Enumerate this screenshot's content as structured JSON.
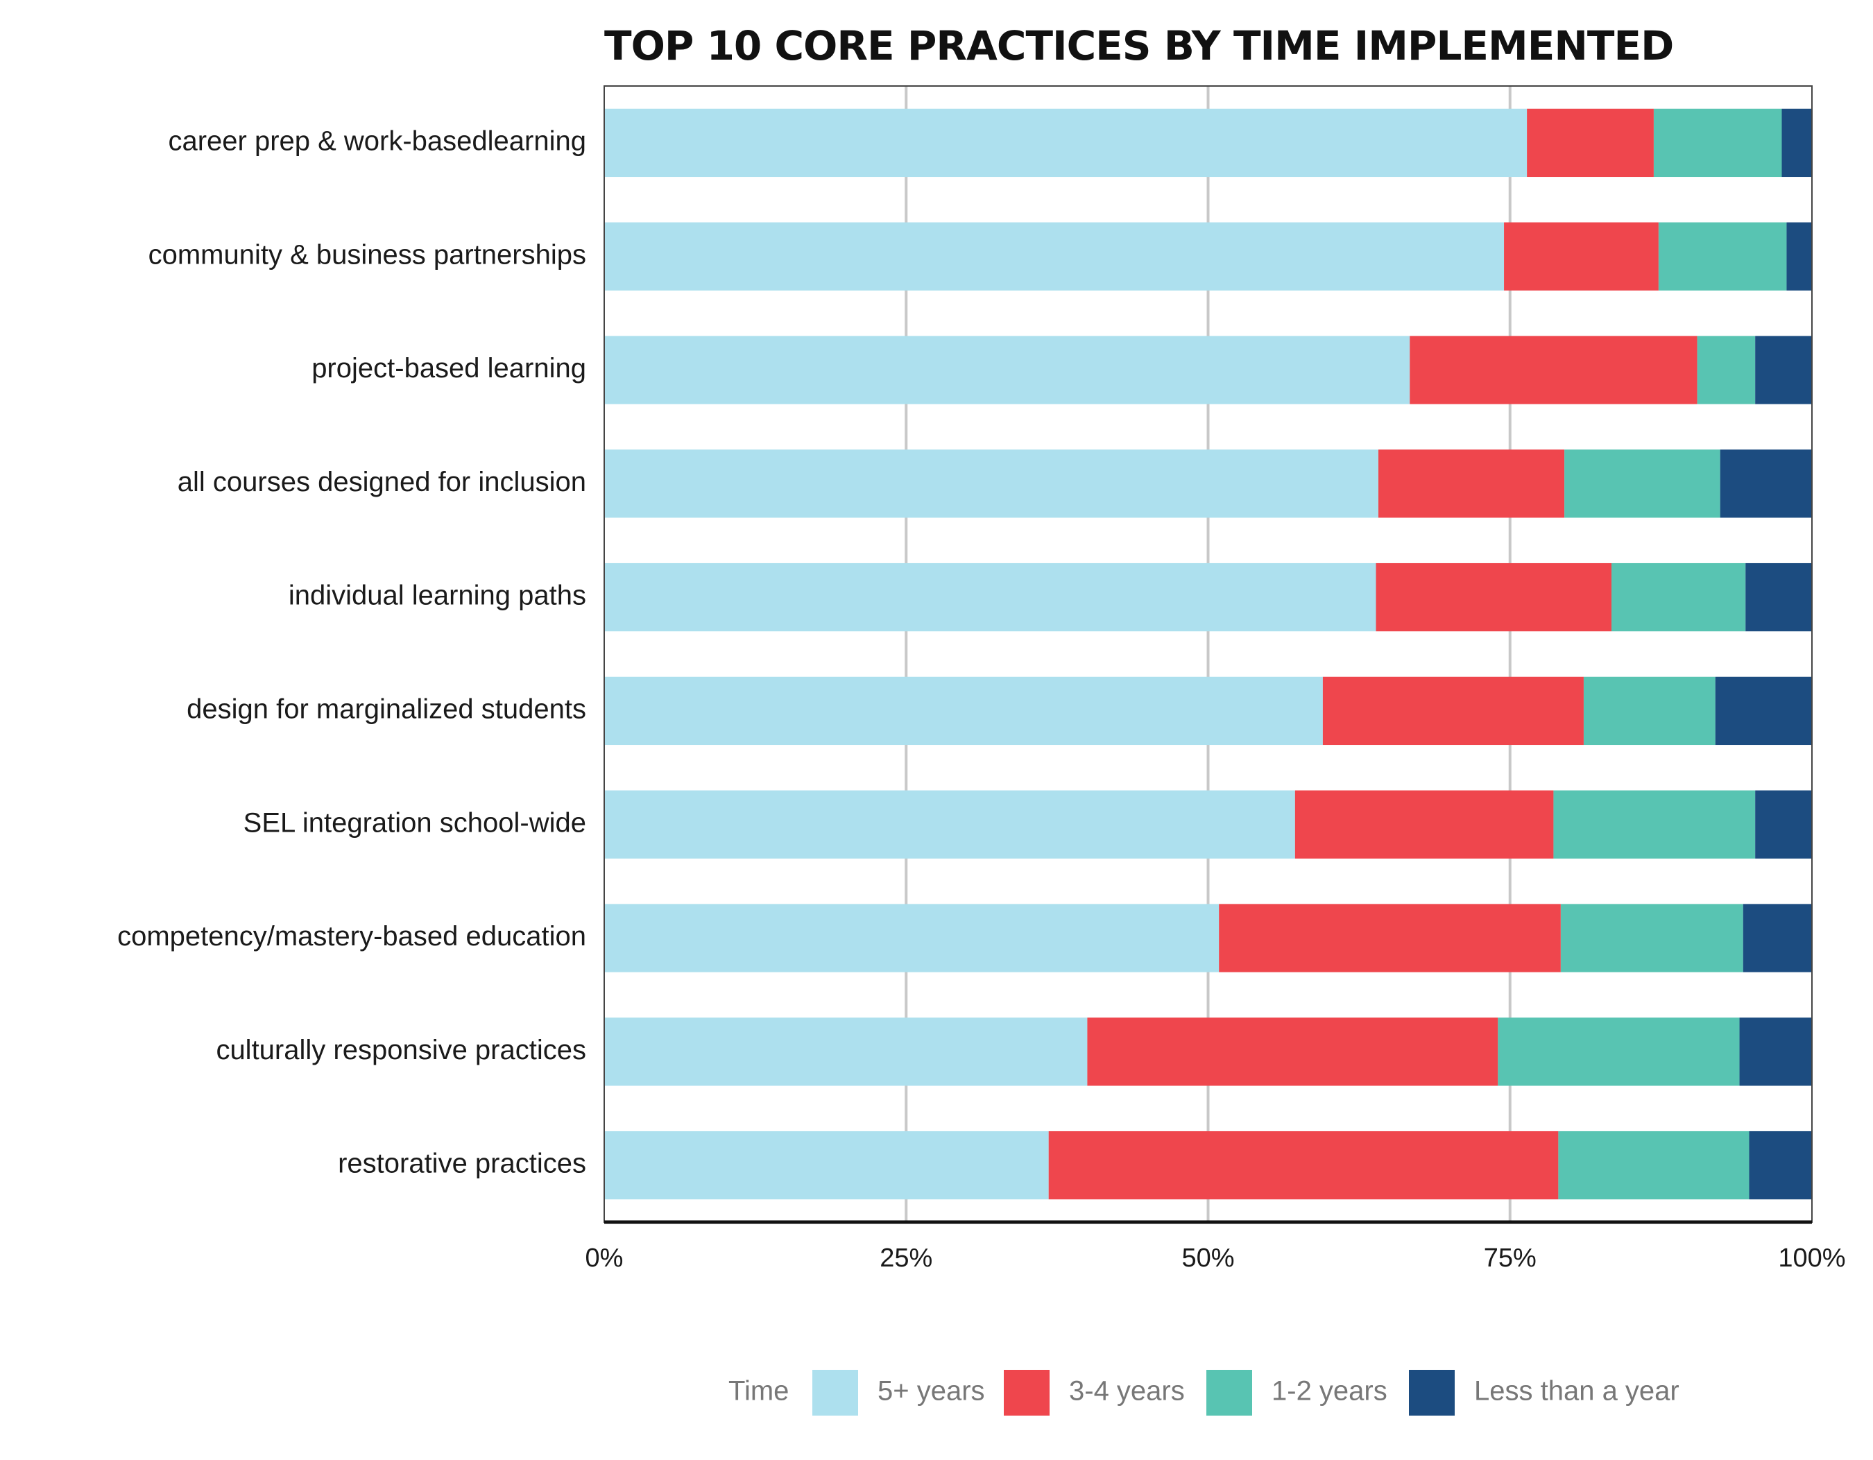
{
  "chart_data": {
    "type": "bar",
    "orientation": "horizontal",
    "stacked": true,
    "title": "TOP 10 CORE PRACTICES BY TIME IMPLEMENTED",
    "xlabel": "",
    "ylabel": "",
    "xlim": [
      0,
      100
    ],
    "x_ticks": [
      "0%",
      "25%",
      "50%",
      "75%",
      "100%"
    ],
    "x_tick_values": [
      0,
      25,
      50,
      75,
      100
    ],
    "grid": "vertical",
    "legend_position": "bottom",
    "legend_title": "Time",
    "categories": [
      "career prep & work-basedlearning",
      "community & business partnerships",
      "project-based learning",
      "all courses designed for inclusion",
      "individual learning paths",
      "design for marginalized students",
      "SEL integration school-wide",
      "competency/mastery-based education",
      "culturally responsive practices",
      "restorative practices"
    ],
    "series": [
      {
        "name": "5+ years",
        "color": "#ADE0EE",
        "values": [
          76.4,
          74.5,
          66.7,
          64.1,
          63.9,
          59.5,
          57.2,
          50.9,
          40.0,
          36.8
        ]
      },
      {
        "name": "3-4 years",
        "color": "#EF464D",
        "values": [
          10.5,
          12.8,
          23.8,
          15.4,
          19.5,
          21.6,
          21.4,
          28.3,
          34.0,
          42.2
        ]
      },
      {
        "name": "1-2 years",
        "color": "#58C4B2",
        "values": [
          10.6,
          10.6,
          4.8,
          12.9,
          11.1,
          10.9,
          16.7,
          15.1,
          20.0,
          15.8
        ]
      },
      {
        "name": "Less than a year",
        "color": "#1C4C80",
        "values": [
          2.5,
          2.1,
          4.7,
          7.6,
          5.5,
          8.0,
          4.7,
          5.7,
          6.0,
          5.2
        ]
      }
    ]
  }
}
